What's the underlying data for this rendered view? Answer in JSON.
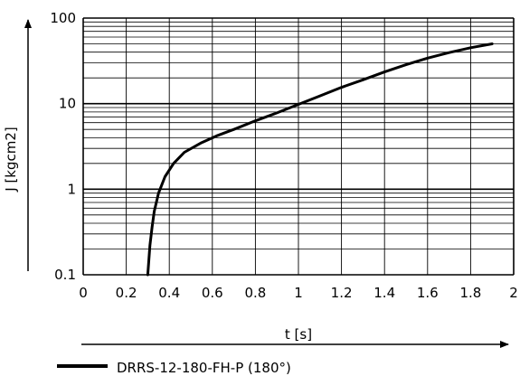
{
  "chart_data": {
    "type": "line",
    "xlabel": "t [s]",
    "ylabel": "J [kgcm2]",
    "xlim": [
      0,
      2
    ],
    "ylim": [
      0.1,
      100
    ],
    "yscale": "log",
    "grid": true,
    "legend_position": "bottom-left",
    "x_ticks": [
      "0",
      "0.2",
      "0.4",
      "0.6",
      "0.8",
      "1",
      "1.2",
      "1.4",
      "1.6",
      "1.8",
      "2"
    ],
    "y_ticks": [
      "0.1",
      "1",
      "10",
      "100"
    ],
    "series": [
      {
        "name": "DRRS-12-180-FH-P (180°)",
        "color": "#000000",
        "x": [
          0.3,
          0.31,
          0.32,
          0.33,
          0.35,
          0.38,
          0.42,
          0.47,
          0.55,
          0.62,
          0.7,
          0.8,
          0.9,
          1.0,
          1.1,
          1.2,
          1.3,
          1.4,
          1.5,
          1.6,
          1.7,
          1.8,
          1.9
        ],
        "y": [
          0.1,
          0.22,
          0.36,
          0.55,
          0.9,
          1.4,
          2.0,
          2.7,
          3.5,
          4.2,
          5.0,
          6.3,
          7.8,
          9.8,
          12.3,
          15.5,
          19.0,
          23.5,
          28.5,
          34.0,
          39.5,
          45.0,
          50.0
        ]
      }
    ]
  }
}
